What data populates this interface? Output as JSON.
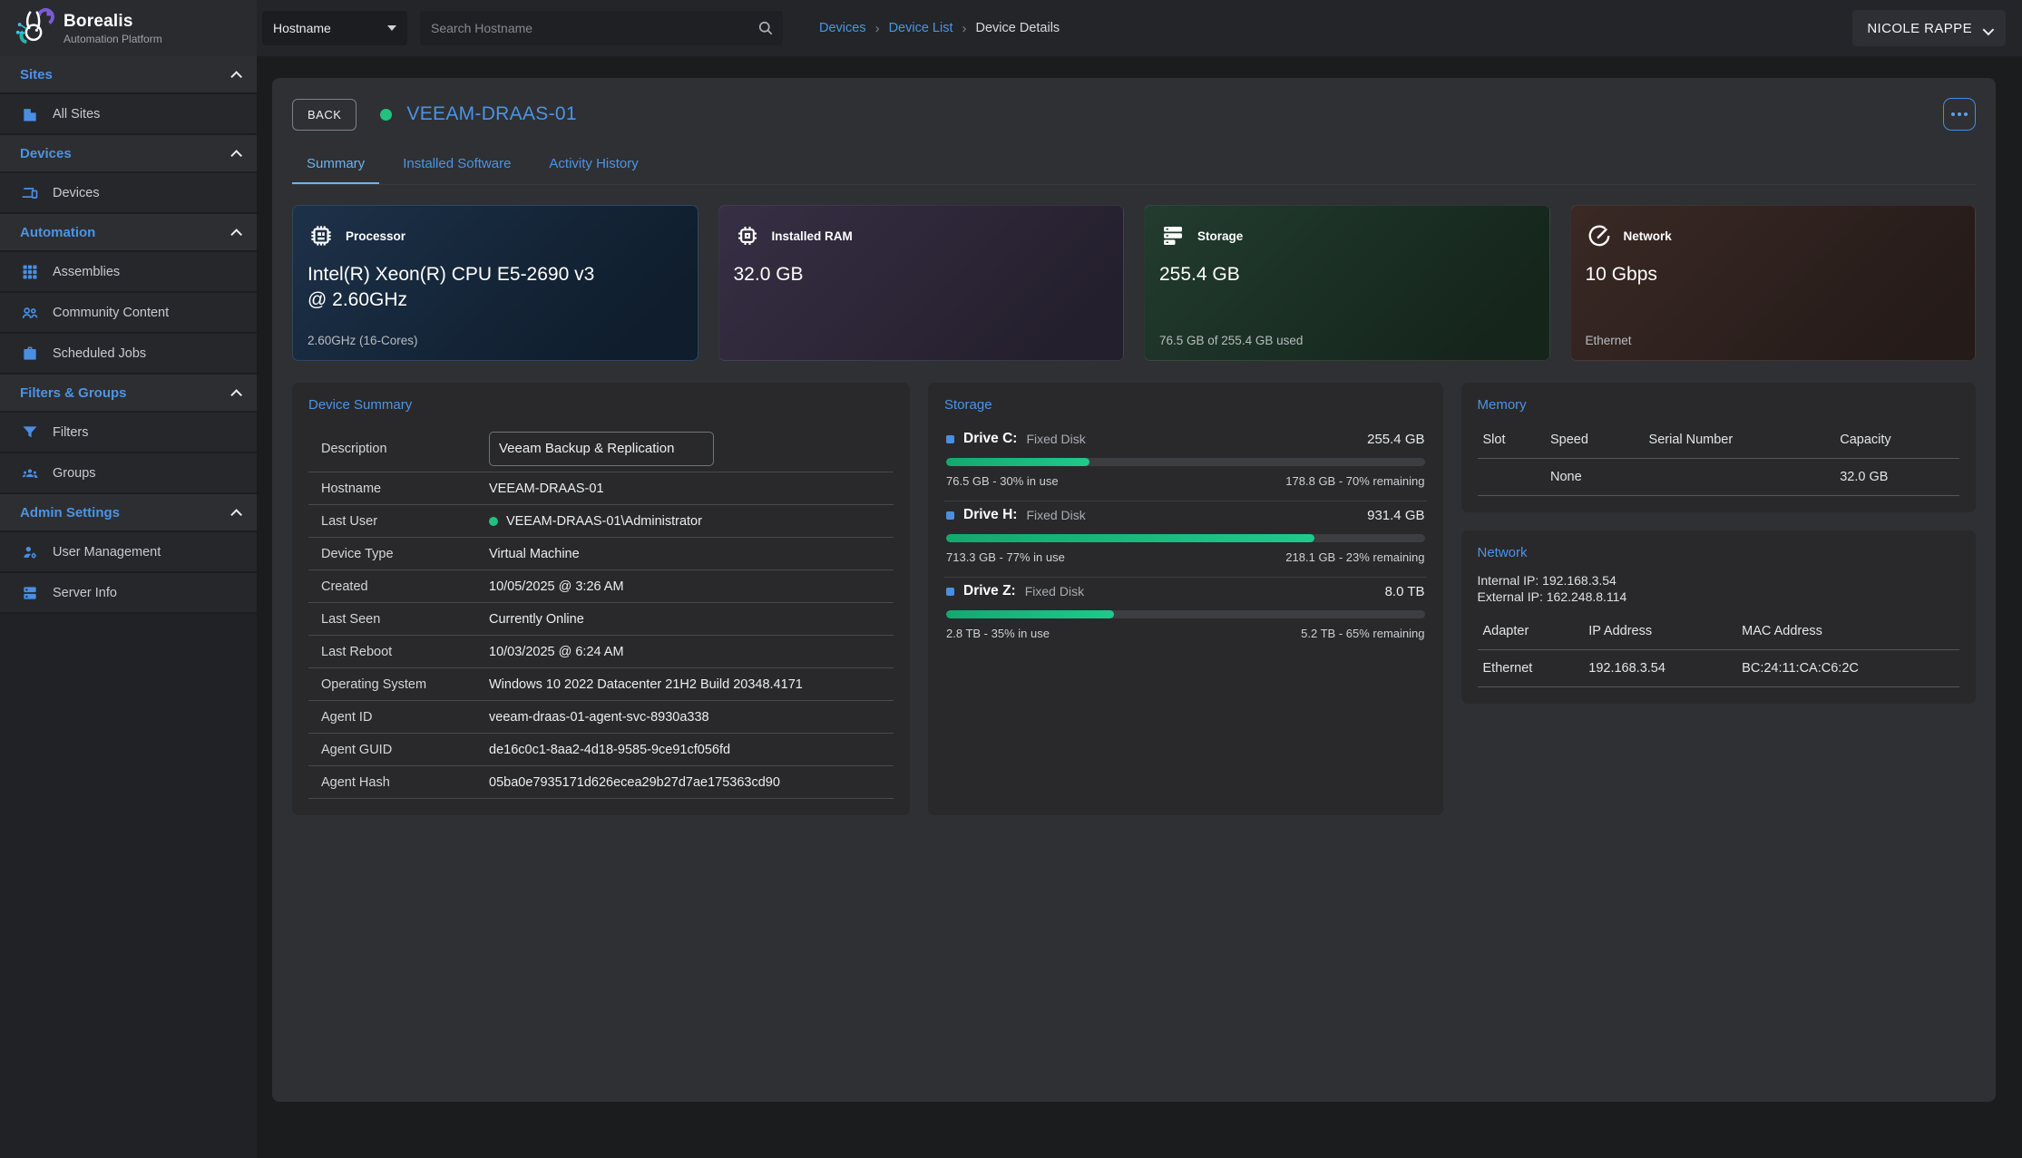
{
  "brand": {
    "name": "Borealis",
    "tagline": "Automation Platform"
  },
  "topbar": {
    "filter_dropdown": "Hostname",
    "search_placeholder": "Search Hostname",
    "breadcrumbs": [
      "Devices",
      "Device List",
      "Device Details"
    ],
    "user": "NICOLE RAPPE"
  },
  "sidebar": {
    "sections": [
      {
        "label": "Sites",
        "items": [
          {
            "icon": "building-icon",
            "label": "All Sites"
          }
        ]
      },
      {
        "label": "Devices",
        "items": [
          {
            "icon": "devices-icon",
            "label": "Devices"
          }
        ]
      },
      {
        "label": "Automation",
        "items": [
          {
            "icon": "grid-icon",
            "label": "Assemblies"
          },
          {
            "icon": "people-icon",
            "label": "Community Content"
          },
          {
            "icon": "briefcase-icon",
            "label": "Scheduled Jobs"
          }
        ]
      },
      {
        "label": "Filters & Groups",
        "items": [
          {
            "icon": "funnel-icon",
            "label": "Filters"
          },
          {
            "icon": "group-icon",
            "label": "Groups"
          }
        ]
      },
      {
        "label": "Admin Settings",
        "items": [
          {
            "icon": "user-gear-icon",
            "label": "User Management"
          },
          {
            "icon": "server-icon",
            "label": "Server Info"
          }
        ]
      }
    ]
  },
  "header": {
    "back_label": "BACK",
    "device_name": "VEEAM-DRAAS-01",
    "status": "online"
  },
  "tabs": [
    {
      "label": "Summary",
      "active": true
    },
    {
      "label": "Installed Software",
      "active": false
    },
    {
      "label": "Activity History",
      "active": false
    }
  ],
  "stat_cards": [
    {
      "icon": "cpu-icon",
      "title": "Processor",
      "value": "Intel(R) Xeon(R) CPU E5-2690 v3 @ 2.60GHz",
      "footer": "2.60GHz (16-Cores)"
    },
    {
      "icon": "ram-chip-icon",
      "title": "Installed RAM",
      "value": "32.0 GB",
      "footer": ""
    },
    {
      "icon": "storage-stack-icon",
      "title": "Storage",
      "value": "255.4 GB",
      "footer": "76.5 GB of 255.4 GB used"
    },
    {
      "icon": "speedometer-icon",
      "title": "Network",
      "value": "10 Gbps",
      "footer": "Ethernet"
    }
  ],
  "device_summary": {
    "title": "Device Summary",
    "rows": [
      {
        "label": "Description",
        "value": "Veeam Backup & Replication"
      },
      {
        "label": "Hostname",
        "value": "VEEAM-DRAAS-01"
      },
      {
        "label": "Last User",
        "value": "VEEAM-DRAAS-01\\Administrator",
        "online": true
      },
      {
        "label": "Device Type",
        "value": "Virtual Machine"
      },
      {
        "label": "Created",
        "value": "10/05/2025 @ 3:26 AM"
      },
      {
        "label": "Last Seen",
        "value": "Currently Online"
      },
      {
        "label": "Last Reboot",
        "value": "10/03/2025 @ 6:24 AM"
      },
      {
        "label": "Operating System",
        "value": "Windows 10 2022 Datacenter 21H2 Build 20348.4171"
      },
      {
        "label": "Agent ID",
        "value": "veeam-draas-01-agent-svc-8930a338"
      },
      {
        "label": "Agent GUID",
        "value": "de16c0c1-8aa2-4d18-9585-9ce91cf056fd"
      },
      {
        "label": "Agent Hash",
        "value": "05ba0e7935171d626ecea29b27d7ae175363cd90"
      }
    ]
  },
  "storage_panel": {
    "title": "Storage",
    "drives": [
      {
        "name": "Drive C:",
        "type": "Fixed Disk",
        "size": "255.4 GB",
        "used_pct": 30,
        "used_text": "76.5 GB - 30% in use",
        "remaining_text": "178.8 GB - 70% remaining"
      },
      {
        "name": "Drive H:",
        "type": "Fixed Disk",
        "size": "931.4 GB",
        "used_pct": 77,
        "used_text": "713.3 GB - 77% in use",
        "remaining_text": "218.1 GB - 23% remaining"
      },
      {
        "name": "Drive Z:",
        "type": "Fixed Disk",
        "size": "8.0 TB",
        "used_pct": 35,
        "used_text": "2.8 TB - 35% in use",
        "remaining_text": "5.2 TB - 65% remaining"
      }
    ]
  },
  "memory_panel": {
    "title": "Memory",
    "headers": [
      "Slot",
      "Speed",
      "Serial Number",
      "Capacity"
    ],
    "rows": [
      {
        "slot": "",
        "speed": "None",
        "serial": "",
        "capacity": "32.0 GB"
      }
    ]
  },
  "network_panel": {
    "title": "Network",
    "internal_ip": "Internal IP: 192.168.3.54",
    "external_ip": "External IP: 162.248.8.114",
    "headers": [
      "Adapter",
      "IP Address",
      "MAC Address"
    ],
    "rows": [
      {
        "adapter": "Ethernet",
        "ip": "192.168.3.54",
        "mac": "BC:24:11:CA:C6:2C"
      }
    ]
  },
  "colors": {
    "accent_blue": "#4b94e4",
    "status_green": "#22c17e",
    "progress_green": "#1fc98c"
  }
}
